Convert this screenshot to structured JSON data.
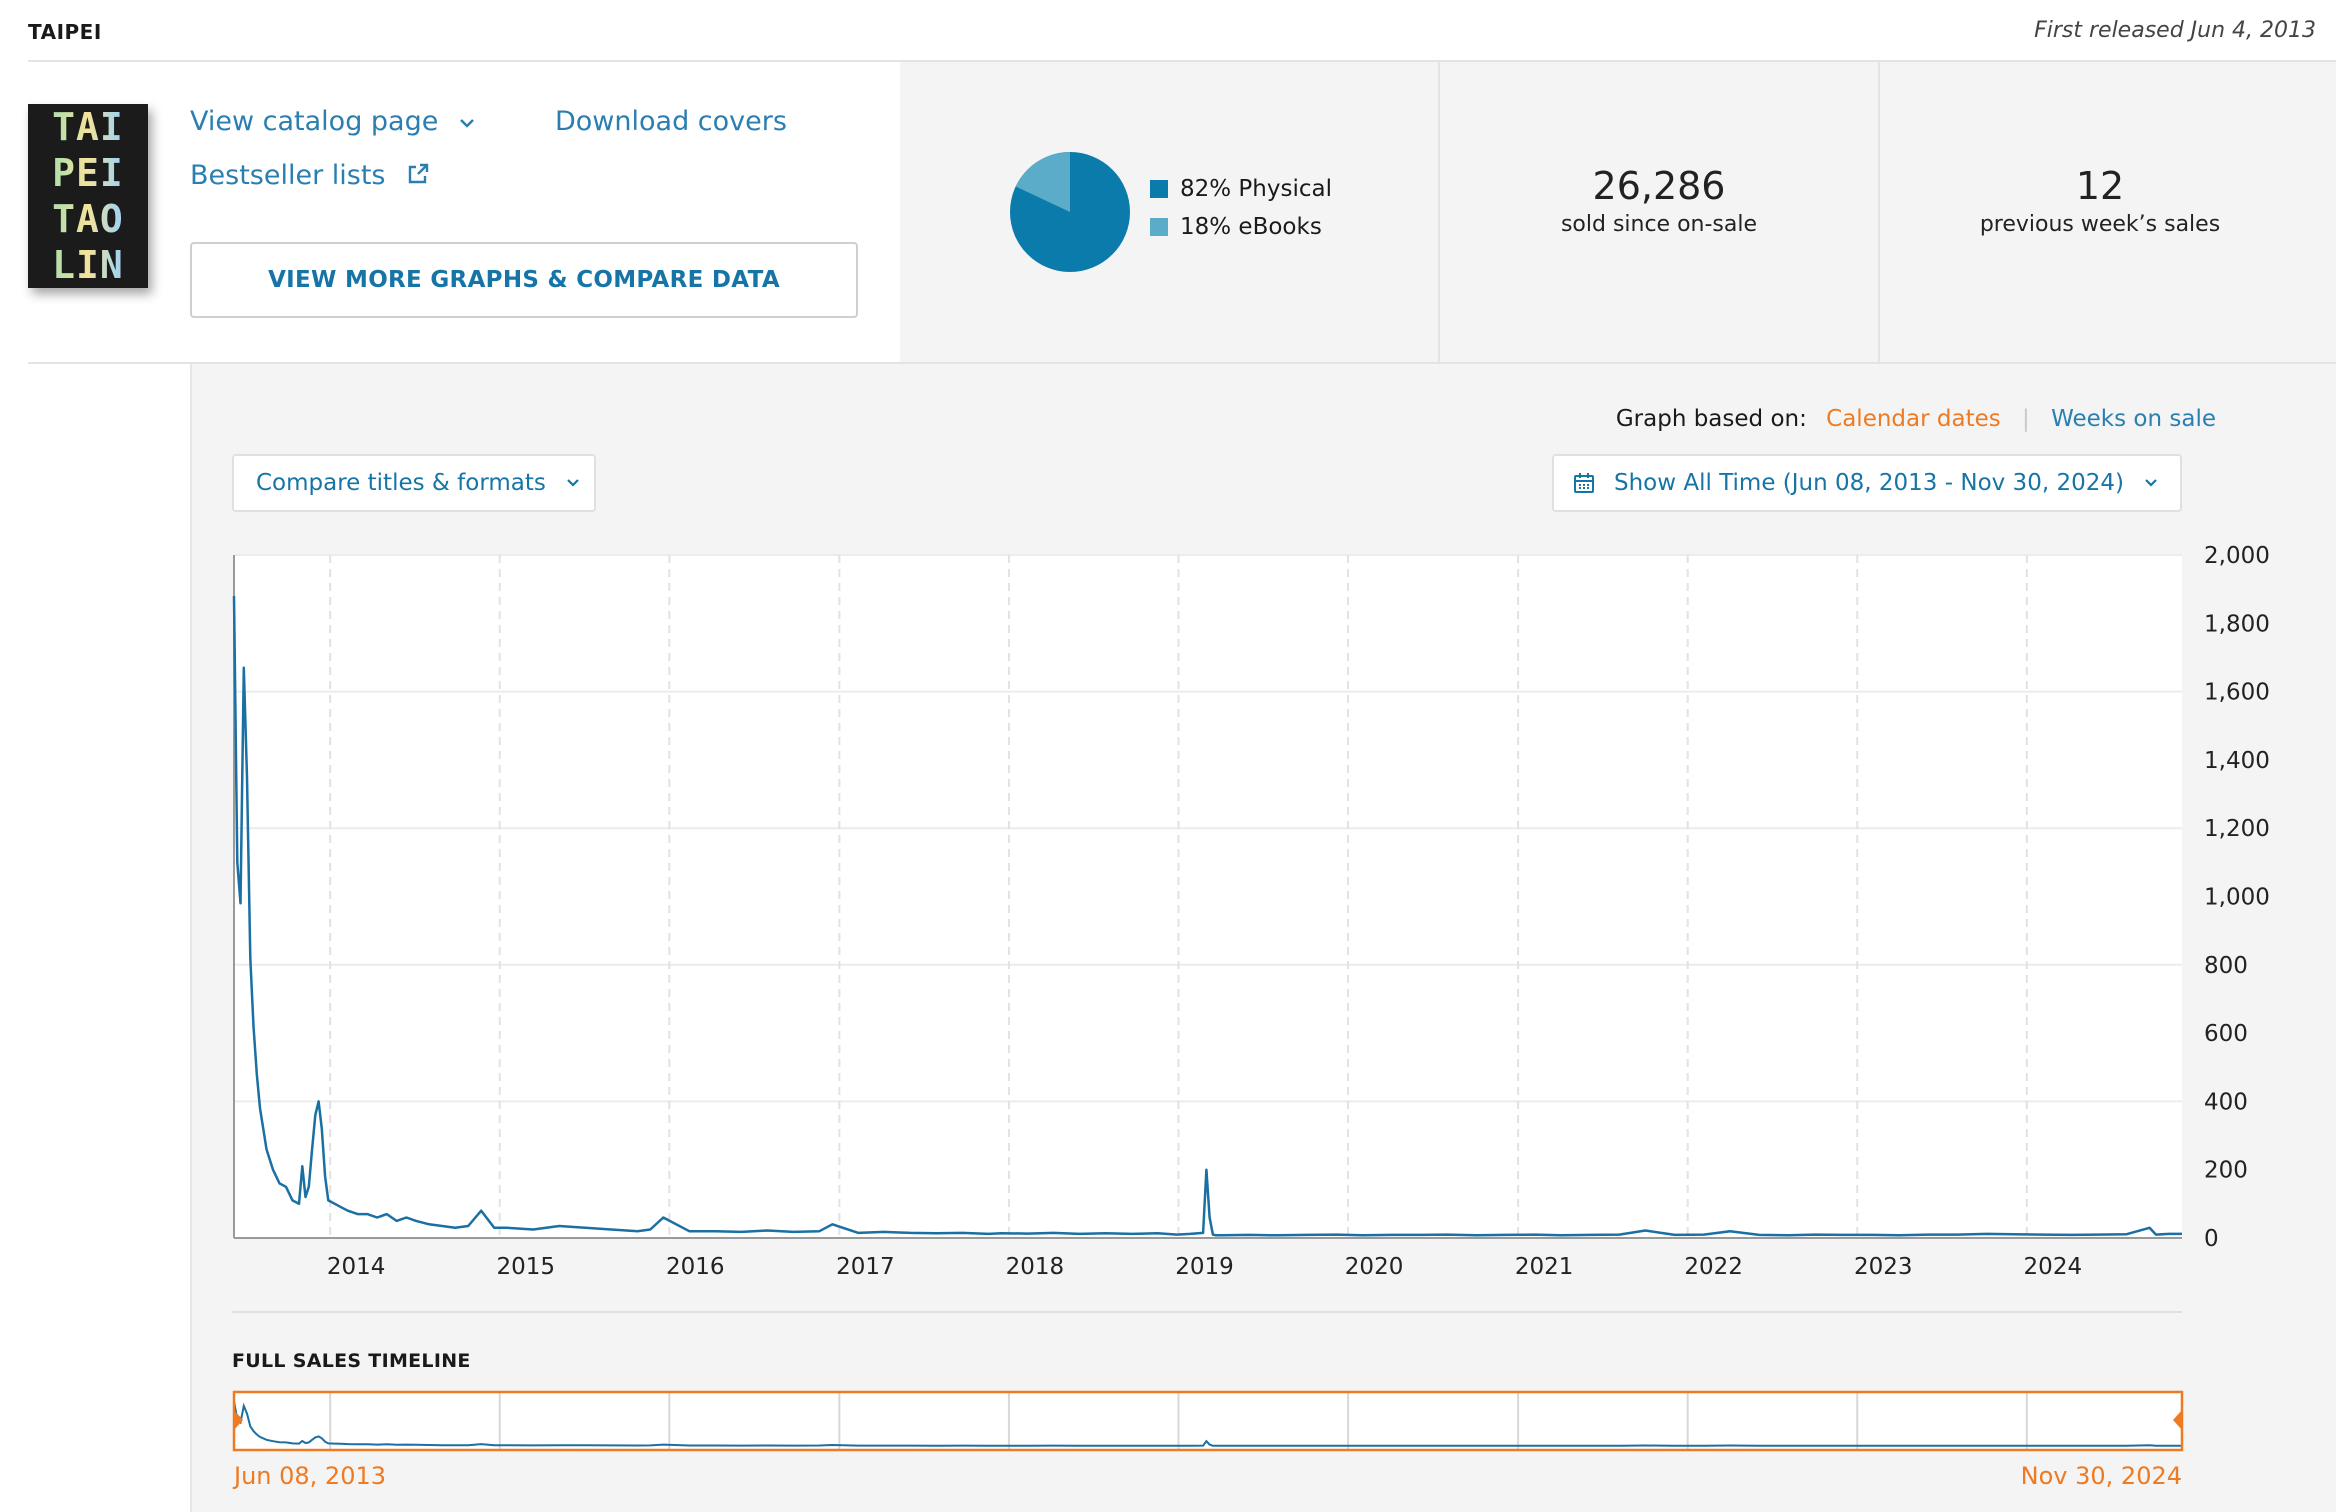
{
  "header": {
    "title": "TAIPEI",
    "released": "First released Jun 4, 2013"
  },
  "cover": {
    "lines": [
      "TAI",
      "PEI",
      "TAO",
      "LIN"
    ]
  },
  "links": {
    "catalog": "View catalog page",
    "download": "Download covers",
    "bestseller": "Bestseller lists",
    "view_more": "VIEW MORE GRAPHS & COMPARE DATA"
  },
  "format_split": {
    "physical_label": "82% Physical",
    "ebook_label": "18% eBooks",
    "physical_pct": 82,
    "ebook_pct": 18,
    "physical_color": "#0b7bab",
    "ebook_color": "#5bacc9"
  },
  "stats": {
    "sold_value": "26,286",
    "sold_label": "sold since on-sale",
    "week_value": "12",
    "week_label": "previous week’s sales"
  },
  "graph_controls": {
    "based_on_label": "Graph based on:",
    "calendar": "Calendar dates",
    "weeks": "Weeks on sale",
    "compare": "Compare titles & formats",
    "range": "Show All Time (Jun 08, 2013 - Nov 30, 2024)"
  },
  "timeline": {
    "label": "FULL SALES TIMELINE",
    "start": "Jun 08, 2013",
    "end": "Nov 30, 2024"
  },
  "colors": {
    "accent": "#ee7a22",
    "link": "#2b7fb0",
    "line": "#1a6fa3"
  },
  "chart_data": {
    "type": "line",
    "x_start": "2013-06-08",
    "x_end": "2024-11-30",
    "x_tick_labels": [
      "2014",
      "2015",
      "2016",
      "2017",
      "2018",
      "2019",
      "2020",
      "2021",
      "2022",
      "2023",
      "2024"
    ],
    "y_ticks": [
      0,
      200,
      400,
      600,
      800,
      1000,
      1200,
      1400,
      1600,
      1800,
      2000
    ],
    "ylim": [
      0,
      2000
    ],
    "grid": true,
    "series": [
      {
        "x": [
          "2013-06-08",
          "2013-06-15",
          "2013-06-22",
          "2013-06-29",
          "2013-07-06",
          "2013-07-13",
          "2013-07-20",
          "2013-07-27",
          "2013-08-03",
          "2013-08-17",
          "2013-08-31",
          "2013-09-14",
          "2013-09-28",
          "2013-10-12",
          "2013-10-26",
          "2013-11-02",
          "2013-11-09",
          "2013-11-16",
          "2013-11-23",
          "2013-11-30",
          "2013-12-07",
          "2013-12-14",
          "2013-12-21",
          "2013-12-28",
          "2014-01-11",
          "2014-01-25",
          "2014-02-08",
          "2014-03-01",
          "2014-03-22",
          "2014-04-12",
          "2014-05-03",
          "2014-05-24",
          "2014-06-14",
          "2014-07-05",
          "2014-08-02",
          "2014-08-30",
          "2014-09-27",
          "2014-10-25",
          "2014-11-22",
          "2014-12-20",
          "2015-01-17",
          "2015-03-14",
          "2015-05-09",
          "2015-07-04",
          "2015-08-29",
          "2015-10-24",
          "2015-11-21",
          "2015-12-19",
          "2016-02-13",
          "2016-04-09",
          "2016-06-04",
          "2016-07-30",
          "2016-09-24",
          "2016-11-19",
          "2016-12-17",
          "2017-02-11",
          "2017-04-08",
          "2017-06-03",
          "2017-07-29",
          "2017-09-23",
          "2017-11-18",
          "2017-12-16",
          "2018-02-10",
          "2018-04-07",
          "2018-06-02",
          "2018-07-28",
          "2018-09-22",
          "2018-11-17",
          "2018-12-29",
          "2019-01-26",
          "2019-02-23",
          "2019-03-02",
          "2019-03-09",
          "2019-03-16",
          "2019-03-23",
          "2019-04-06",
          "2019-06-01",
          "2019-08-03",
          "2019-10-05",
          "2019-12-07",
          "2020-02-01",
          "2020-04-04",
          "2020-06-06",
          "2020-08-01",
          "2020-10-03",
          "2020-12-05",
          "2021-02-06",
          "2021-04-03",
          "2021-06-05",
          "2021-08-07",
          "2021-10-02",
          "2021-12-04",
          "2022-02-05",
          "2022-04-02",
          "2022-06-04",
          "2022-08-06",
          "2022-10-01",
          "2022-12-03",
          "2023-02-04",
          "2023-04-01",
          "2023-06-03",
          "2023-08-05",
          "2023-10-07",
          "2023-12-02",
          "2024-02-03",
          "2024-04-06",
          "2024-06-01",
          "2024-08-03",
          "2024-09-21",
          "2024-10-05",
          "2024-11-02",
          "2024-11-30"
        ],
        "y": [
          1880,
          1100,
          980,
          1670,
          1350,
          820,
          620,
          480,
          380,
          260,
          200,
          160,
          150,
          110,
          100,
          210,
          120,
          150,
          260,
          360,
          400,
          320,
          180,
          110,
          100,
          90,
          80,
          70,
          70,
          60,
          70,
          50,
          60,
          50,
          40,
          35,
          30,
          35,
          80,
          30,
          30,
          25,
          35,
          30,
          25,
          20,
          25,
          60,
          20,
          20,
          18,
          22,
          18,
          20,
          40,
          15,
          18,
          15,
          14,
          15,
          12,
          14,
          13,
          15,
          12,
          14,
          12,
          14,
          10,
          12,
          15,
          200,
          60,
          10,
          8,
          8,
          9,
          8,
          9,
          10,
          8,
          9,
          9,
          10,
          8,
          9,
          10,
          8,
          9,
          10,
          22,
          9,
          10,
          20,
          9,
          8,
          10,
          9,
          9,
          8,
          10,
          10,
          12,
          11,
          10,
          9,
          10,
          11,
          30,
          10,
          12,
          12
        ]
      }
    ]
  }
}
